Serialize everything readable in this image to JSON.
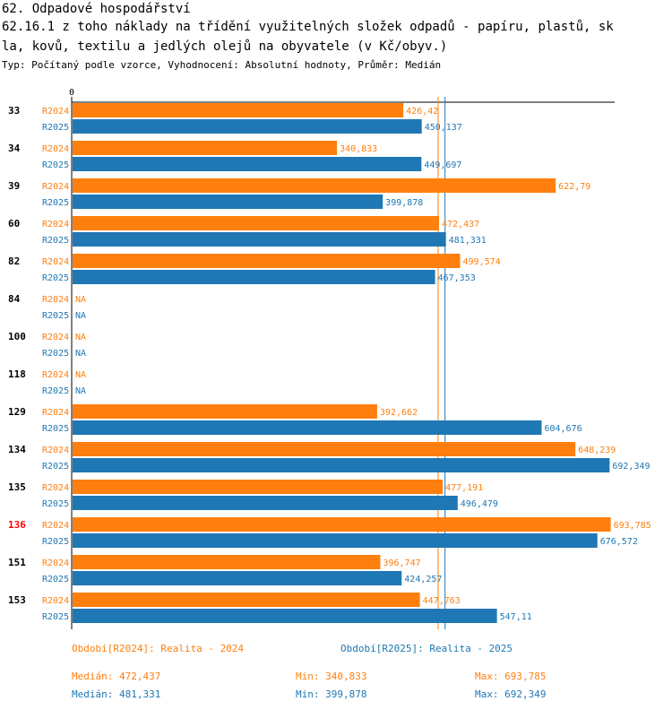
{
  "header": {
    "title": "62. Odpadové hospodářství",
    "subtitle_line1": "62.16.1 z toho náklady na třídění využitelných složek odpadů - papíru, plastů, sk",
    "subtitle_line2": "la, kovů, textilu a jedlých olejů na obyvatele (v Kč/obyv.)",
    "meta": "Typ: Počítaný podle vzorce, Vyhodnocení: Absolutní hodnoty, Průměr: Medián"
  },
  "colors": {
    "r2024": "#ff7f0e",
    "r2025": "#1f77b4",
    "highlight": "#ff0000"
  },
  "chart_data": {
    "type": "bar",
    "orientation": "horizontal",
    "axis_zero_label": "0",
    "xlim": [
      0,
      700
    ],
    "series_labels": [
      "R2024",
      "R2025"
    ],
    "categories": [
      {
        "id": "33",
        "highlight": false,
        "r2024": 426.42,
        "r2024_label": "426,42",
        "r2025": 450.137,
        "r2025_label": "450,137"
      },
      {
        "id": "34",
        "highlight": false,
        "r2024": 340.833,
        "r2024_label": "340,833",
        "r2025": 449.697,
        "r2025_label": "449,697"
      },
      {
        "id": "39",
        "highlight": false,
        "r2024": 622.79,
        "r2024_label": "622,79",
        "r2025": 399.878,
        "r2025_label": "399,878"
      },
      {
        "id": "60",
        "highlight": false,
        "r2024": 472.437,
        "r2024_label": "472,437",
        "r2025": 481.331,
        "r2025_label": "481,331"
      },
      {
        "id": "82",
        "highlight": false,
        "r2024": 499.574,
        "r2024_label": "499,574",
        "r2025": 467.353,
        "r2025_label": "467,353"
      },
      {
        "id": "84",
        "highlight": false,
        "r2024": null,
        "r2024_label": "NA",
        "r2025": null,
        "r2025_label": "NA"
      },
      {
        "id": "100",
        "highlight": false,
        "r2024": null,
        "r2024_label": "NA",
        "r2025": null,
        "r2025_label": "NA"
      },
      {
        "id": "118",
        "highlight": false,
        "r2024": null,
        "r2024_label": "NA",
        "r2025": null,
        "r2025_label": "NA"
      },
      {
        "id": "129",
        "highlight": false,
        "r2024": 392.662,
        "r2024_label": "392,662",
        "r2025": 604.676,
        "r2025_label": "604,676"
      },
      {
        "id": "134",
        "highlight": false,
        "r2024": 648.239,
        "r2024_label": "648,239",
        "r2025": 692.349,
        "r2025_label": "692,349"
      },
      {
        "id": "135",
        "highlight": false,
        "r2024": 477.191,
        "r2024_label": "477,191",
        "r2025": 496.479,
        "r2025_label": "496,479"
      },
      {
        "id": "136",
        "highlight": true,
        "r2024": 693.785,
        "r2024_label": "693,785",
        "r2025": 676.572,
        "r2025_label": "676,572"
      },
      {
        "id": "151",
        "highlight": false,
        "r2024": 396.747,
        "r2024_label": "396,747",
        "r2025": 424.257,
        "r2025_label": "424,257"
      },
      {
        "id": "153",
        "highlight": false,
        "r2024": 447.763,
        "r2024_label": "447,763",
        "r2025": 547.11,
        "r2025_label": "547,11"
      }
    ],
    "median_lines": {
      "r2024": 472.437,
      "r2025": 481.331
    }
  },
  "legend": {
    "period_2024": "Období[R2024]: Realita - 2024",
    "period_2025": "Období[R2025]: Realita - 2025",
    "median_2024": "Medián: 472,437",
    "min_2024": "Min: 340,833",
    "max_2024": "Max: 693,785",
    "median_2025": "Medián: 481,331",
    "min_2025": "Min: 399,878",
    "max_2025": "Max: 692,349"
  }
}
